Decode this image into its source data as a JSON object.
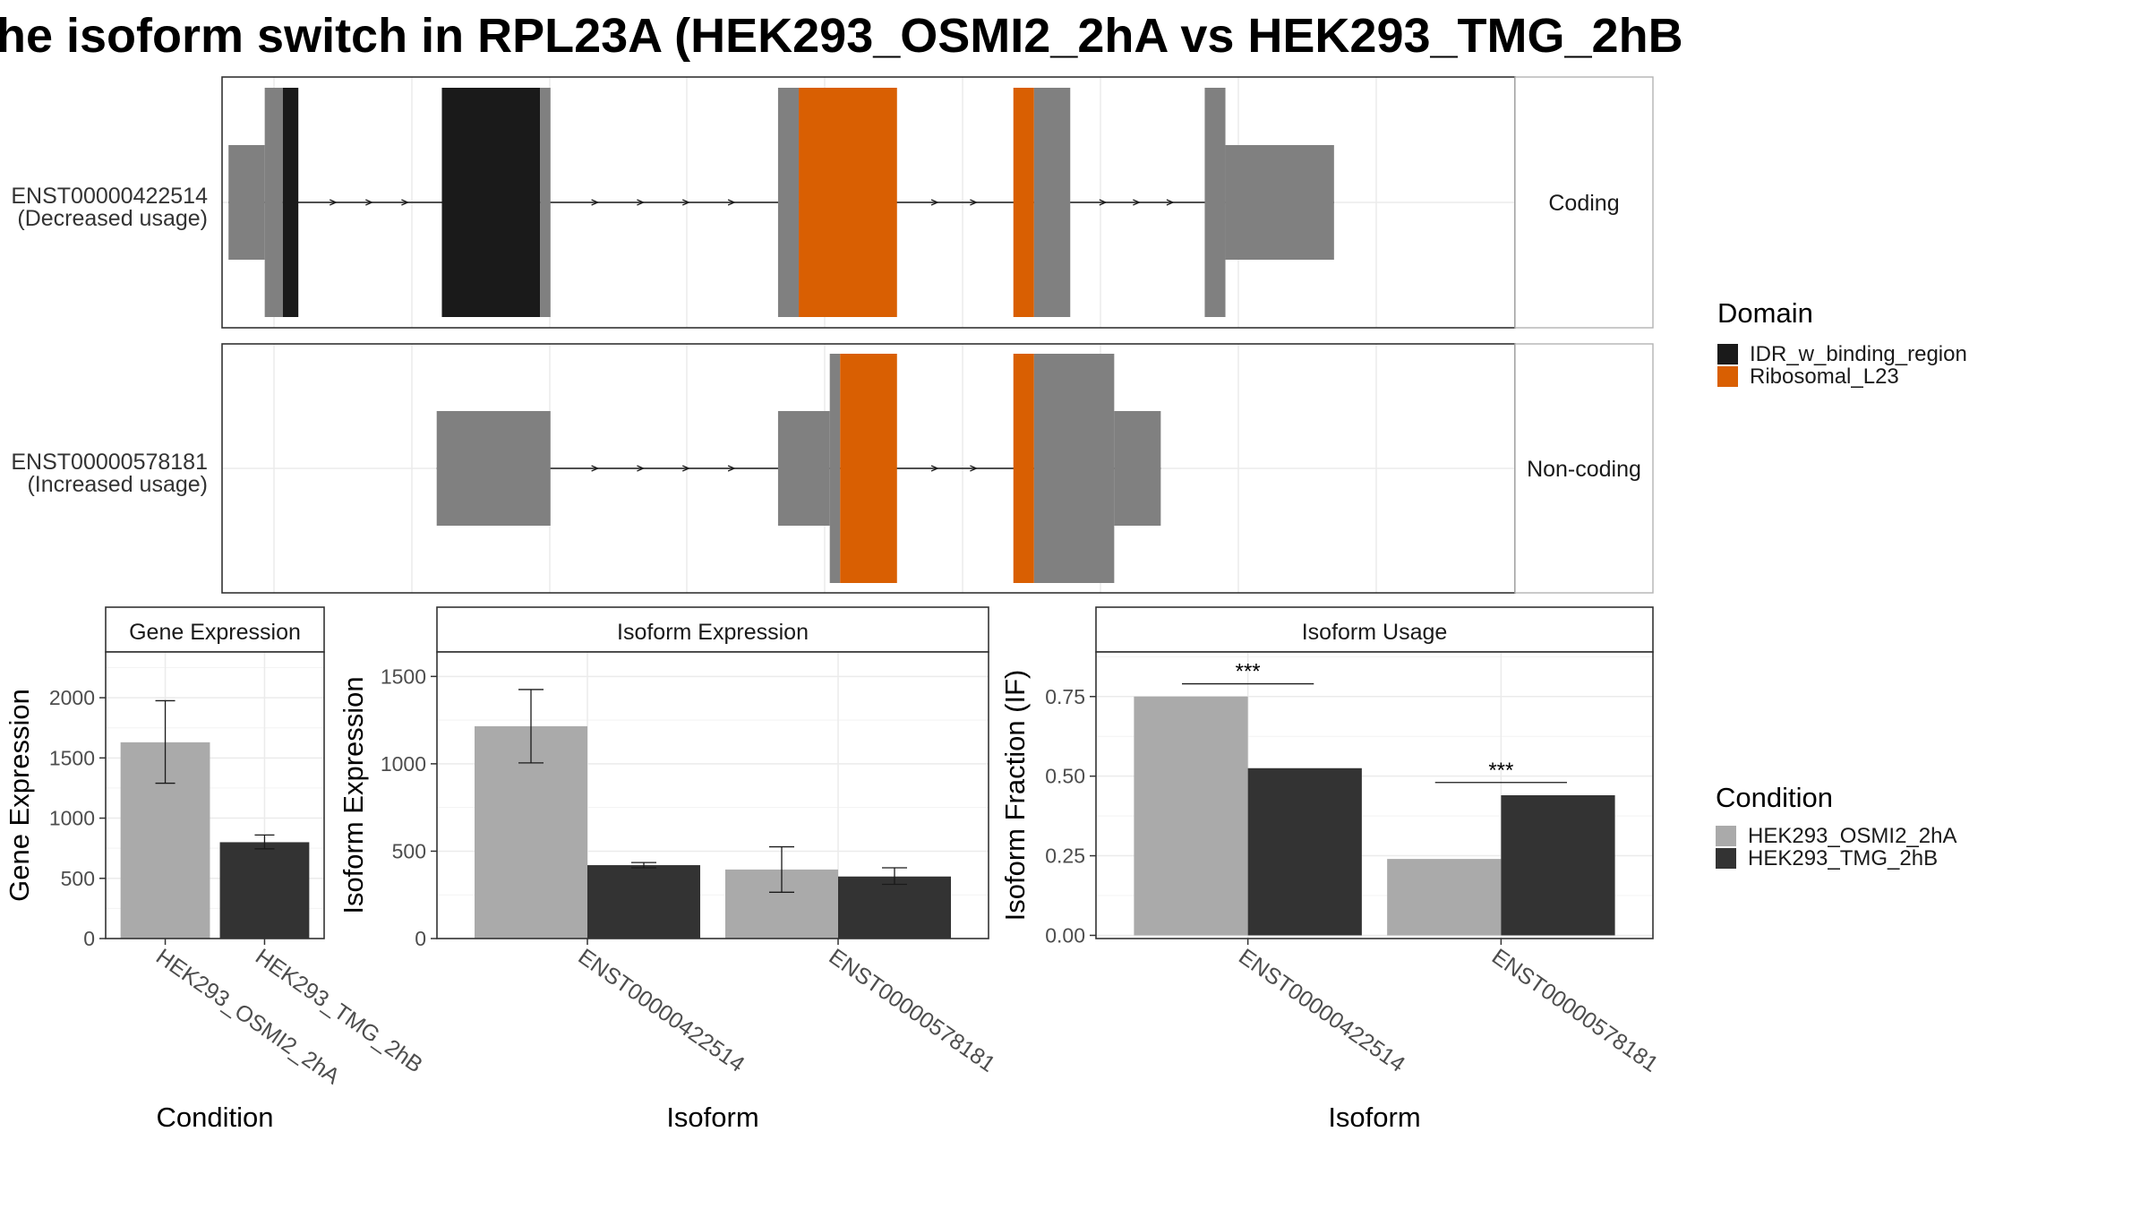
{
  "title": "he isoform switch in RPL23A (HEK293_OSMI2_2hA vs HEK293_TMG_2hB",
  "colors": {
    "utr": "#808080",
    "IDR_w_binding_region": "#1a1a1a",
    "Ribosomal_L23": "#d95f02",
    "HEK293_OSMI2_2hA": "#aaaaaa",
    "HEK293_TMG_2hB": "#333333"
  },
  "legends": {
    "domain": {
      "title": "Domain",
      "items": [
        "IDR_w_binding_region",
        "Ribosomal_L23"
      ]
    },
    "condition": {
      "title": "Condition",
      "items": [
        "HEK293_OSMI2_2hA",
        "HEK293_TMG_2hB"
      ]
    }
  },
  "chart_data": [
    {
      "type": "gene-structure",
      "genomic_range": [
        0,
        100
      ],
      "isoforms": [
        {
          "id": "ENST00000422514",
          "label_line1": "ENST00000422514",
          "label_line2": "(Decreased usage)",
          "coding_class": "Coding",
          "exons": [
            {
              "start": 0.5,
              "end": 3.3,
              "kind": "utr"
            },
            {
              "start": 3.3,
              "end": 4.7,
              "kind": "cds"
            },
            {
              "start": 4.7,
              "end": 5.9,
              "kind": "domain",
              "domain": "IDR_w_binding_region"
            },
            {
              "start": 17.0,
              "end": 24.6,
              "kind": "domain",
              "domain": "IDR_w_binding_region"
            },
            {
              "start": 24.6,
              "end": 25.4,
              "kind": "cds"
            },
            {
              "start": 43.0,
              "end": 44.6,
              "kind": "cds"
            },
            {
              "start": 44.6,
              "end": 52.2,
              "kind": "domain",
              "domain": "Ribosomal_L23"
            },
            {
              "start": 61.2,
              "end": 62.8,
              "kind": "domain",
              "domain": "Ribosomal_L23"
            },
            {
              "start": 62.8,
              "end": 65.6,
              "kind": "cds"
            },
            {
              "start": 76.0,
              "end": 77.6,
              "kind": "cds"
            },
            {
              "start": 77.6,
              "end": 86.0,
              "kind": "utr"
            }
          ]
        },
        {
          "id": "ENST00000578181",
          "label_line1": "ENST00000578181",
          "label_line2": "(Increased usage)",
          "coding_class": "Non-coding",
          "exons": [
            {
              "start": 16.6,
              "end": 25.4,
              "kind": "utr"
            },
            {
              "start": 43.0,
              "end": 47.0,
              "kind": "utr"
            },
            {
              "start": 47.0,
              "end": 47.8,
              "kind": "cds"
            },
            {
              "start": 47.8,
              "end": 52.2,
              "kind": "domain",
              "domain": "Ribosomal_L23"
            },
            {
              "start": 61.2,
              "end": 62.8,
              "kind": "domain",
              "domain": "Ribosomal_L23"
            },
            {
              "start": 62.8,
              "end": 69.0,
              "kind": "cds"
            },
            {
              "start": 69.0,
              "end": 72.6,
              "kind": "utr"
            }
          ]
        }
      ]
    },
    {
      "type": "bar",
      "title": "Gene Expression",
      "xlabel": "Condition",
      "ylabel": "Gene Expression",
      "ylim": [
        0,
        2380
      ],
      "yticks": [
        0,
        500,
        1000,
        1500,
        2000
      ],
      "categories": [
        "HEK293_OSMI2_2hA",
        "HEK293_TMG_2hB"
      ],
      "values": [
        1630,
        800
      ],
      "error_low": [
        1290,
        745
      ],
      "error_high": [
        1975,
        860
      ]
    },
    {
      "type": "bar",
      "title": "Isoform Expression",
      "xlabel": "Isoform",
      "ylabel": "Isoform Expression",
      "ylim": [
        0,
        1640
      ],
      "yticks": [
        0,
        500,
        1000,
        1500
      ],
      "categories": [
        "ENST00000422514",
        "ENST00000578181"
      ],
      "series": [
        {
          "name": "HEK293_OSMI2_2hA",
          "values": [
            1215,
            395
          ],
          "error_low": [
            1005,
            265
          ],
          "error_high": [
            1425,
            525
          ]
        },
        {
          "name": "HEK293_TMG_2hB",
          "values": [
            420,
            355
          ],
          "error_low": [
            405,
            310
          ],
          "error_high": [
            435,
            405
          ]
        }
      ]
    },
    {
      "type": "bar",
      "title": "Isoform Usage",
      "xlabel": "Isoform",
      "ylabel": "Isoform Fraction (IF)",
      "ylim": [
        -0.01,
        0.89
      ],
      "yticks": [
        0.0,
        0.25,
        0.5,
        0.75
      ],
      "ytick_labels": [
        "0.00",
        "0.25",
        "0.50",
        "0.75"
      ],
      "categories": [
        "ENST00000422514",
        "ENST00000578181"
      ],
      "series": [
        {
          "name": "HEK293_OSMI2_2hA",
          "values": [
            0.75,
            0.24
          ]
        },
        {
          "name": "HEK293_TMG_2hB",
          "values": [
            0.525,
            0.44
          ]
        }
      ],
      "significance": [
        {
          "category": "ENST00000422514",
          "label": "***",
          "y": 0.79
        },
        {
          "category": "ENST00000578181",
          "label": "***",
          "y": 0.48
        }
      ]
    }
  ]
}
